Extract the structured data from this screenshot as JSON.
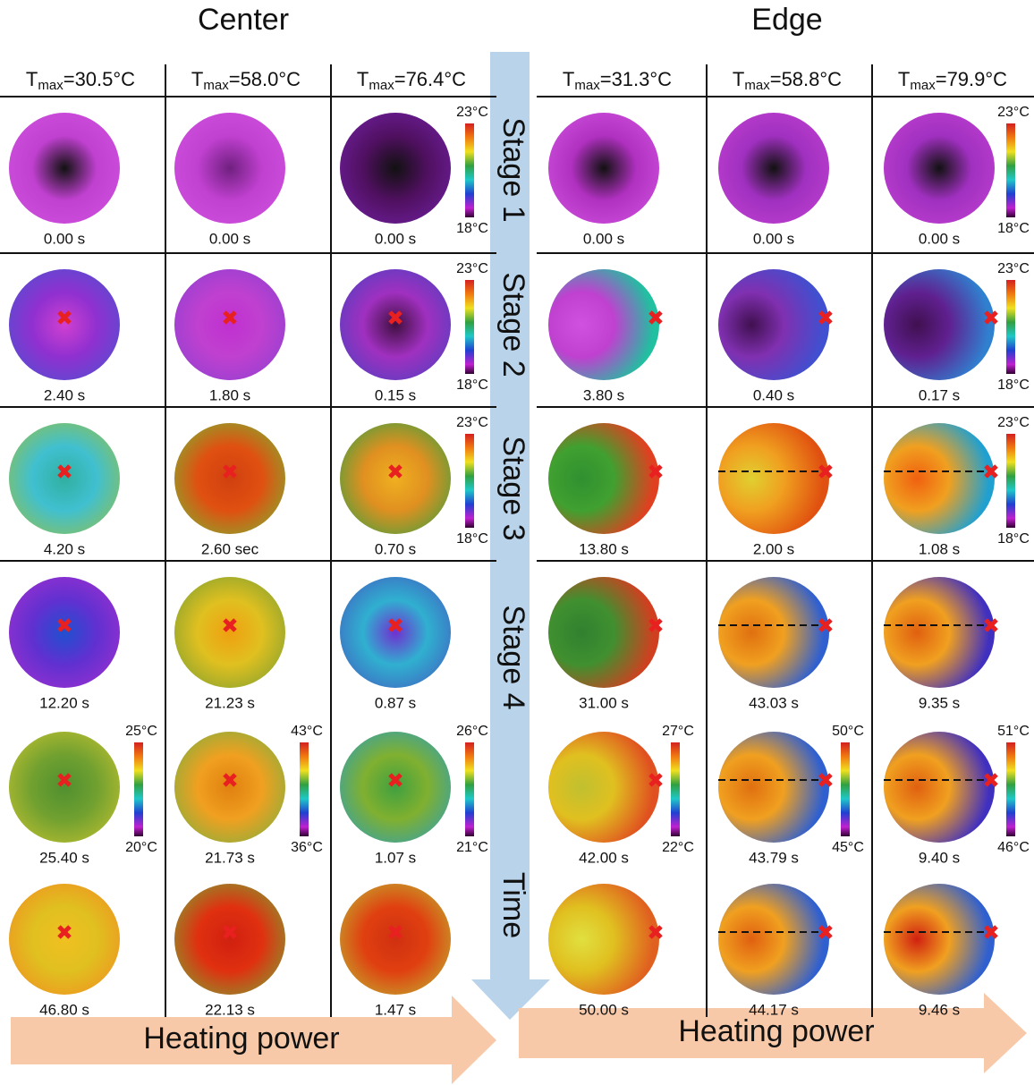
{
  "arrow_labels": [
    "Stage 1",
    "Stage 2",
    "Stage 3",
    "Stage 4",
    "Time"
  ],
  "panels": [
    {
      "title": "Center",
      "power_label": "Heating power",
      "columns": [
        {
          "header": {
            "symbol": "T",
            "subscript": "max",
            "value": "=30.5°C"
          },
          "cells": [
            {
              "time": "0.00 s"
            },
            {
              "time": "2.40 s"
            },
            {
              "time": "4.20 s"
            },
            {
              "time": "12.20 s"
            },
            {
              "time": "25.40 s",
              "scale": {
                "max": "25°C",
                "min": "20°C"
              }
            },
            {
              "time": "46.80 s"
            }
          ]
        },
        {
          "header": {
            "symbol": "T",
            "subscript": "max",
            "value": "=58.0°C"
          },
          "cells": [
            {
              "time": "0.00 s"
            },
            {
              "time": "1.80 s"
            },
            {
              "time": "2.60 sec"
            },
            {
              "time": "21.23 s"
            },
            {
              "time": "21.73 s",
              "scale": {
                "max": "43°C",
                "min": "36°C"
              }
            },
            {
              "time": "22.13 s"
            }
          ]
        },
        {
          "header": {
            "symbol": "T",
            "subscript": "max",
            "value": "=76.4°C"
          },
          "cells": [
            {
              "time": "0.00 s",
              "scale": {
                "max": "23°C",
                "min": "18°C"
              }
            },
            {
              "time": "0.15 s",
              "scale": {
                "max": "23°C",
                "min": "18°C"
              }
            },
            {
              "time": "0.70 s",
              "scale": {
                "max": "23°C",
                "min": "18°C"
              }
            },
            {
              "time": "0.87 s"
            },
            {
              "time": "1.07 s",
              "scale": {
                "max": "26°C",
                "min": "21°C"
              }
            },
            {
              "time": "1.47 s"
            }
          ]
        }
      ]
    },
    {
      "title": "Edge",
      "power_label": "Heating power",
      "columns": [
        {
          "header": {
            "symbol": "T",
            "subscript": "max",
            "value": "=31.3°C"
          },
          "cells": [
            {
              "time": "0.00 s"
            },
            {
              "time": "3.80 s"
            },
            {
              "time": "13.80 s"
            },
            {
              "time": "31.00 s"
            },
            {
              "time": "42.00 s",
              "scale": {
                "max": "27°C",
                "min": "22°C"
              }
            },
            {
              "time": "50.00 s"
            }
          ]
        },
        {
          "header": {
            "symbol": "T",
            "subscript": "max",
            "value": "=58.8°C"
          },
          "cells": [
            {
              "time": "0.00 s"
            },
            {
              "time": "0.40 s"
            },
            {
              "time": "2.00 s"
            },
            {
              "time": "43.03 s"
            },
            {
              "time": "43.79 s",
              "scale": {
                "max": "50°C",
                "min": "45°C"
              }
            },
            {
              "time": "44.17 s"
            }
          ]
        },
        {
          "header": {
            "symbol": "T",
            "subscript": "max",
            "value": "=79.9°C"
          },
          "cells": [
            {
              "time": "0.00 s",
              "scale": {
                "max": "23°C",
                "min": "18°C"
              }
            },
            {
              "time": "0.17 s",
              "scale": {
                "max": "23°C",
                "min": "18°C"
              }
            },
            {
              "time": "1.08 s",
              "scale": {
                "max": "23°C",
                "min": "18°C"
              }
            },
            {
              "time": "9.35 s"
            },
            {
              "time": "9.40 s",
              "scale": {
                "max": "51°C",
                "min": "46°C"
              }
            },
            {
              "time": "9.46 s"
            }
          ]
        }
      ]
    }
  ]
}
